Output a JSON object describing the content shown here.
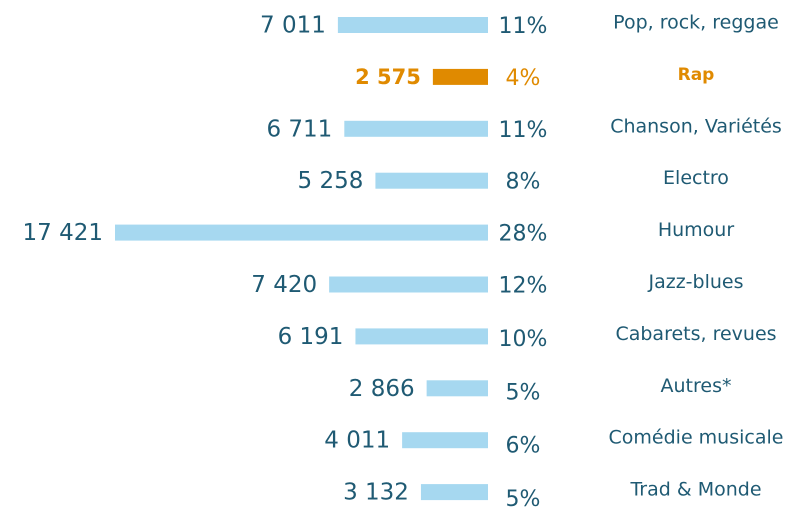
{
  "chart_data": {
    "type": "bar",
    "categories": [
      "Pop, rock, reggae",
      "Rap",
      "Chanson, Variétés",
      "Electro",
      "Humour",
      "Jazz-blues",
      "Cabarets, revues",
      "Autres*",
      "Comédie musicale",
      "Trad & Monde"
    ],
    "values": [
      7011,
      2575,
      6711,
      5258,
      17421,
      7420,
      6191,
      2866,
      4011,
      3132
    ],
    "value_labels": [
      "7 011",
      "2 575",
      "6 711",
      "5 258",
      "17 421",
      "7 420",
      "6 191",
      "2 866",
      "4 011",
      "3 132"
    ],
    "share_labels": [
      "11%",
      "4%",
      "11%",
      "8%",
      "28%",
      "12%",
      "10%",
      "5%",
      "6%",
      "5%"
    ],
    "color": "#a6d8f0",
    "colors": [
      "#a6d8f0",
      "#e08a00",
      "#a6d8f0",
      "#a6d8f0",
      "#a6d8f0",
      "#a6d8f0",
      "#a6d8f0",
      "#a6d8f0",
      "#a6d8f0",
      "#a6d8f0"
    ],
    "xlim": [
      0,
      17421
    ]
  }
}
